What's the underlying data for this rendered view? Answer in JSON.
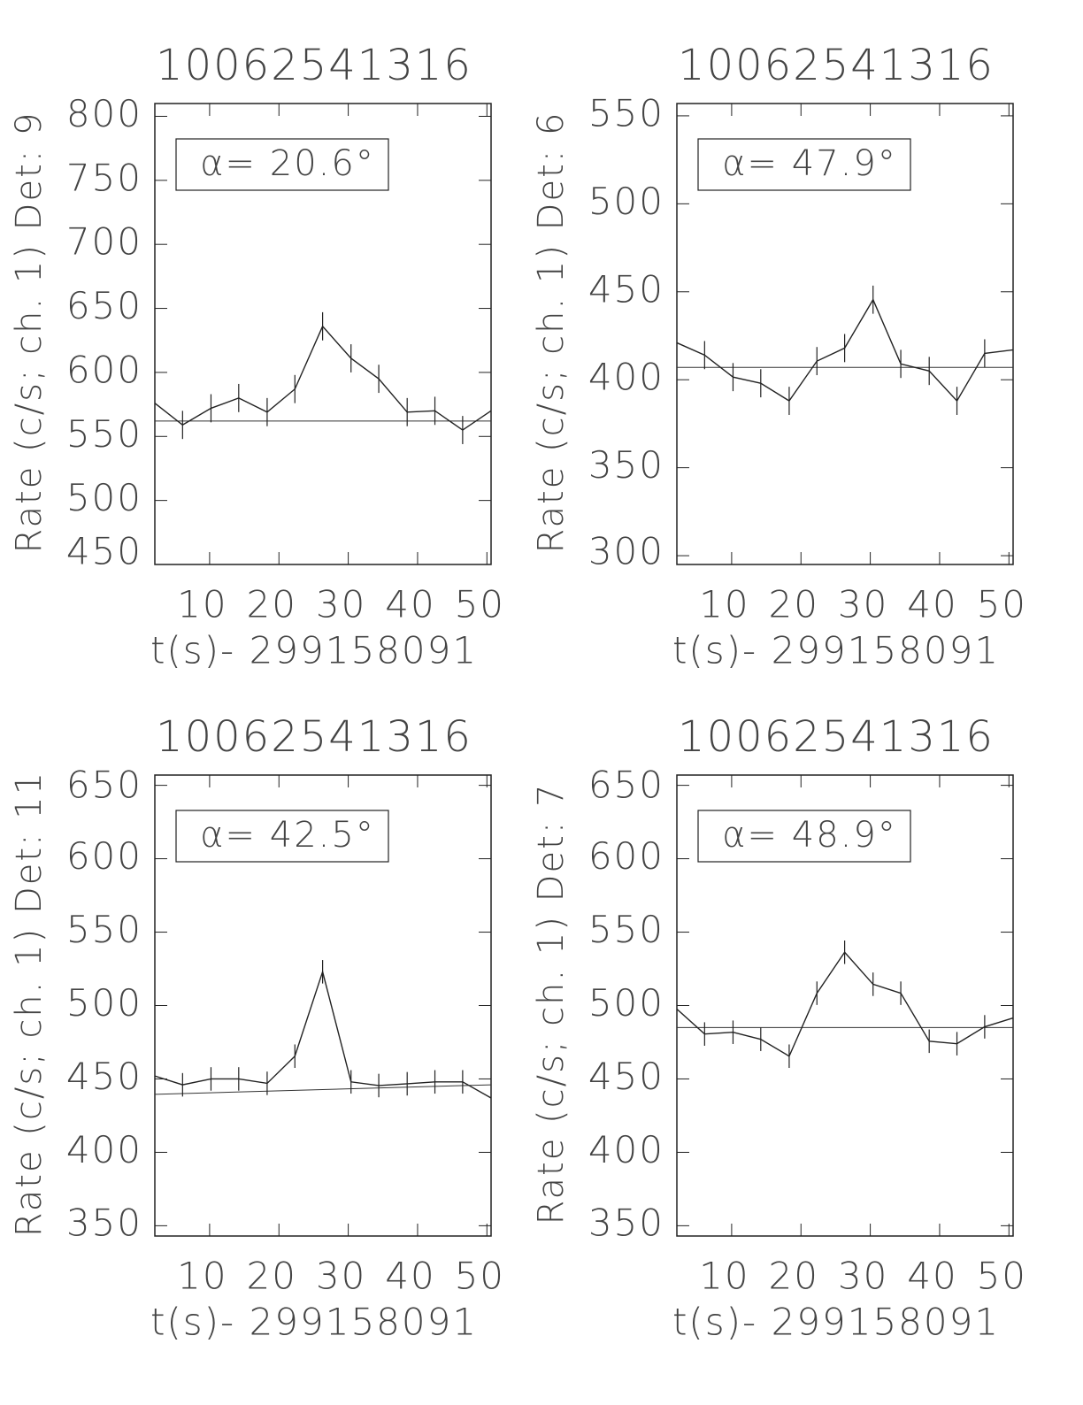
{
  "chart_data": [
    {
      "type": "line",
      "title": "10062541316",
      "xlabel": "t(s)- 299158091",
      "ylabel": "Rate (c/s; ch. 1) Det: 9",
      "annotation": "α= 20.6°",
      "x": [
        2.1,
        6.1,
        10.2,
        14.2,
        18.3,
        22.3,
        26.3,
        30.4,
        34.4,
        38.5,
        42.5,
        46.5,
        50.6
      ],
      "values": [
        576,
        559,
        572,
        580,
        569,
        587,
        636,
        611,
        595,
        569,
        570,
        555,
        570
      ],
      "errors": [
        null,
        11,
        11,
        11,
        11,
        11,
        11,
        11,
        11,
        11,
        11,
        11,
        null
      ],
      "fit_x": [
        2.1,
        50.6
      ],
      "fit_values": [
        562,
        562
      ],
      "xlim": [
        2.1,
        50.6
      ],
      "ylim": [
        450,
        810
      ],
      "xticks": [
        10,
        20,
        30,
        40,
        50
      ],
      "yticks": [
        450,
        500,
        550,
        600,
        650,
        700,
        750,
        800
      ]
    },
    {
      "type": "line",
      "title": "10062541316",
      "xlabel": "t(s)- 299158091",
      "ylabel": "Rate (c/s; ch. 1) Det: 6",
      "annotation": "α= 47.9°",
      "x": [
        2.1,
        6.1,
        10.2,
        14.2,
        18.3,
        22.3,
        26.3,
        30.4,
        34.4,
        38.5,
        42.5,
        46.5,
        50.6
      ],
      "values": [
        421,
        414,
        401.5,
        398,
        388,
        410.6,
        418,
        445.5,
        409,
        405,
        388,
        415,
        417
      ],
      "errors": [
        null,
        8,
        8,
        8,
        8,
        8,
        8,
        8,
        8,
        8,
        8,
        8,
        null
      ],
      "fit_x": [
        2.1,
        50.6
      ],
      "fit_values": [
        407,
        407
      ],
      "xlim": [
        2.1,
        50.6
      ],
      "ylim": [
        295,
        557
      ],
      "xticks": [
        10,
        20,
        30,
        40,
        50
      ],
      "yticks": [
        300,
        350,
        400,
        450,
        500,
        550
      ]
    },
    {
      "type": "line",
      "title": "10062541316",
      "xlabel": "t(s)- 299158091",
      "ylabel": "Rate (c/s; ch. 1) Det: 11",
      "annotation": "α= 42.5°",
      "x": [
        2.1,
        6.1,
        10.2,
        14.2,
        18.3,
        22.3,
        26.3,
        30.4,
        34.4,
        38.5,
        42.5,
        46.5,
        50.6
      ],
      "values": [
        452,
        446,
        450,
        450,
        447,
        465.5,
        523,
        448,
        445.5,
        446.7,
        448,
        448,
        437
      ],
      "errors": [
        null,
        8,
        8,
        8,
        8,
        8,
        8,
        8,
        8,
        8,
        8,
        8,
        null
      ],
      "fit_x": [
        2.1,
        50.6
      ],
      "fit_values": [
        439.5,
        446
      ],
      "xlim": [
        2.1,
        50.6
      ],
      "ylim": [
        343,
        657
      ],
      "xticks": [
        10,
        20,
        30,
        40,
        50
      ],
      "yticks": [
        350,
        400,
        450,
        500,
        550,
        600,
        650
      ]
    },
    {
      "type": "line",
      "title": "10062541316",
      "xlabel": "t(s)- 299158091",
      "ylabel": "Rate (c/s; ch. 1) Det: 7",
      "annotation": "α= 48.9°",
      "x": [
        2.1,
        6.1,
        10.2,
        14.2,
        18.3,
        22.3,
        26.3,
        30.4,
        34.4,
        38.5,
        42.5,
        46.5,
        50.6
      ],
      "values": [
        497.6,
        480.6,
        481.8,
        477,
        465.5,
        508.4,
        536.3,
        514.5,
        508.4,
        475.7,
        474,
        485.5,
        491.5
      ],
      "errors": [
        null,
        8,
        8,
        8,
        8,
        8,
        8,
        8,
        8,
        8,
        8,
        8,
        null
      ],
      "fit_x": [
        2.1,
        50.6
      ],
      "fit_values": [
        485,
        485
      ],
      "xlim": [
        2.1,
        50.6
      ],
      "ylim": [
        343,
        657
      ],
      "xticks": [
        10,
        20,
        30,
        40,
        50
      ],
      "yticks": [
        350,
        400,
        450,
        500,
        550,
        600,
        650
      ]
    }
  ]
}
